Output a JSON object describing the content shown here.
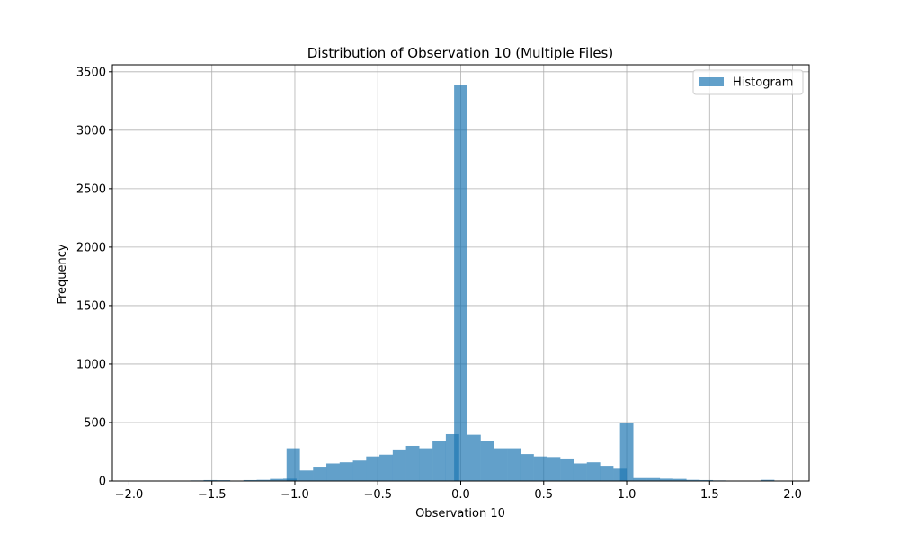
{
  "chart_data": {
    "type": "bar",
    "title": "Distribution of Observation 10 (Multiple Files)",
    "xlabel": "Observation 10",
    "ylabel": "Frequency",
    "xlim": [
      -2.1,
      2.1
    ],
    "ylim": [
      0,
      3560
    ],
    "xticks": [
      -2.0,
      -1.5,
      -1.0,
      -0.5,
      0.0,
      0.5,
      1.0,
      1.5,
      2.0
    ],
    "xtick_labels": [
      "−2.0",
      "−1.5",
      "−1.0",
      "−0.5",
      "0.0",
      "0.5",
      "1.0",
      "1.5",
      "2.0"
    ],
    "yticks": [
      0,
      500,
      1000,
      1500,
      2000,
      2500,
      3000,
      3500
    ],
    "ytick_labels": [
      "0",
      "500",
      "1000",
      "1500",
      "2000",
      "2500",
      "3000",
      "3500"
    ],
    "grid": true,
    "legend_position": "upper right",
    "series": [
      {
        "name": "Histogram",
        "color": "#1f77b4",
        "alpha": 0.7,
        "bin_width": 0.0806,
        "bins": [
          [
            -2.03,
            0
          ],
          [
            -1.95,
            1
          ],
          [
            -1.87,
            0
          ],
          [
            -1.79,
            1
          ],
          [
            -1.71,
            0
          ],
          [
            -1.63,
            5
          ],
          [
            -1.55,
            8
          ],
          [
            -1.47,
            7
          ],
          [
            -1.39,
            0
          ],
          [
            -1.31,
            8
          ],
          [
            -1.23,
            10
          ],
          [
            -1.15,
            18
          ],
          [
            -1.07,
            20
          ],
          [
            -1.05,
            280
          ],
          [
            -0.97,
            90
          ],
          [
            -0.89,
            115
          ],
          [
            -0.81,
            150
          ],
          [
            -0.73,
            160
          ],
          [
            -0.65,
            175
          ],
          [
            -0.57,
            210
          ],
          [
            -0.49,
            225
          ],
          [
            -0.41,
            270
          ],
          [
            -0.33,
            300
          ],
          [
            -0.25,
            280
          ],
          [
            -0.17,
            340
          ],
          [
            -0.09,
            400
          ],
          [
            -0.04,
            3390
          ],
          [
            0.04,
            395
          ],
          [
            0.12,
            340
          ],
          [
            0.2,
            280
          ],
          [
            0.28,
            280
          ],
          [
            0.36,
            230
          ],
          [
            0.44,
            210
          ],
          [
            0.52,
            205
          ],
          [
            0.6,
            185
          ],
          [
            0.68,
            150
          ],
          [
            0.76,
            160
          ],
          [
            0.84,
            130
          ],
          [
            0.92,
            105
          ],
          [
            0.96,
            500
          ],
          [
            1.04,
            25
          ],
          [
            1.12,
            25
          ],
          [
            1.2,
            20
          ],
          [
            1.28,
            18
          ],
          [
            1.36,
            10
          ],
          [
            1.44,
            8
          ],
          [
            1.52,
            5
          ],
          [
            1.6,
            3
          ],
          [
            1.68,
            2
          ],
          [
            1.76,
            3
          ],
          [
            1.81,
            10
          ],
          [
            1.88,
            0
          ]
        ]
      }
    ]
  }
}
